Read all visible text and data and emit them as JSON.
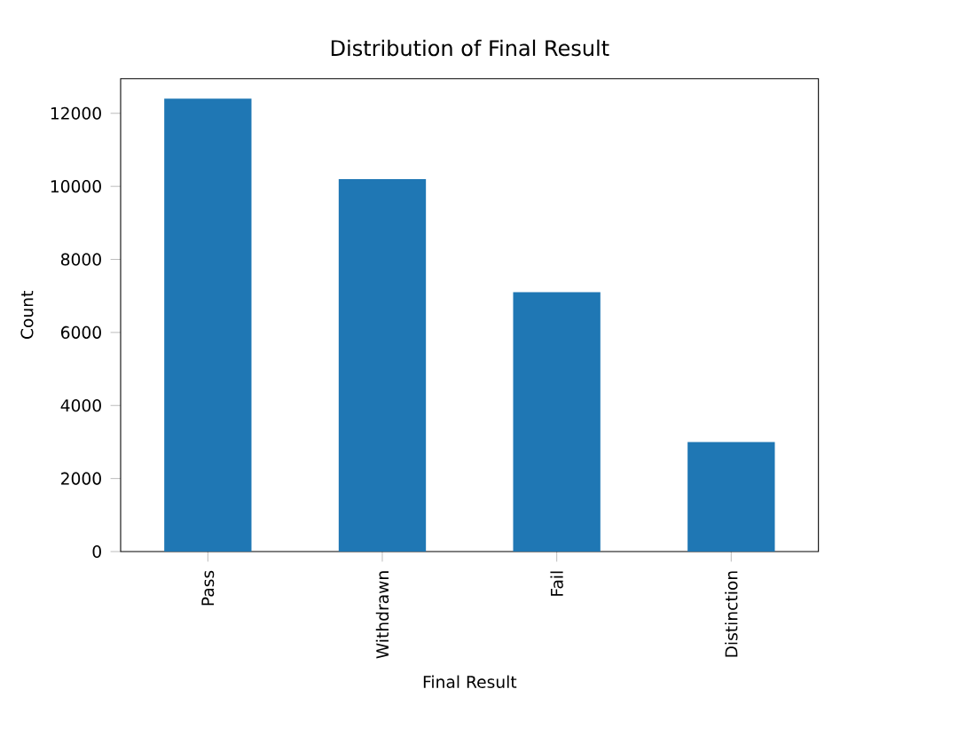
{
  "chart_data": {
    "type": "bar",
    "title": "Distribution of Final Result",
    "xlabel": "Final Result",
    "ylabel": "Count",
    "categories": [
      "Pass",
      "Withdrawn",
      "Fail",
      "Distinction"
    ],
    "values": [
      12400,
      10200,
      7100,
      3000
    ],
    "color": "#1f77b4",
    "ylim": [
      0,
      12950
    ],
    "yticks": [
      0,
      2000,
      4000,
      6000,
      8000,
      10000,
      12000
    ],
    "grid": false
  }
}
